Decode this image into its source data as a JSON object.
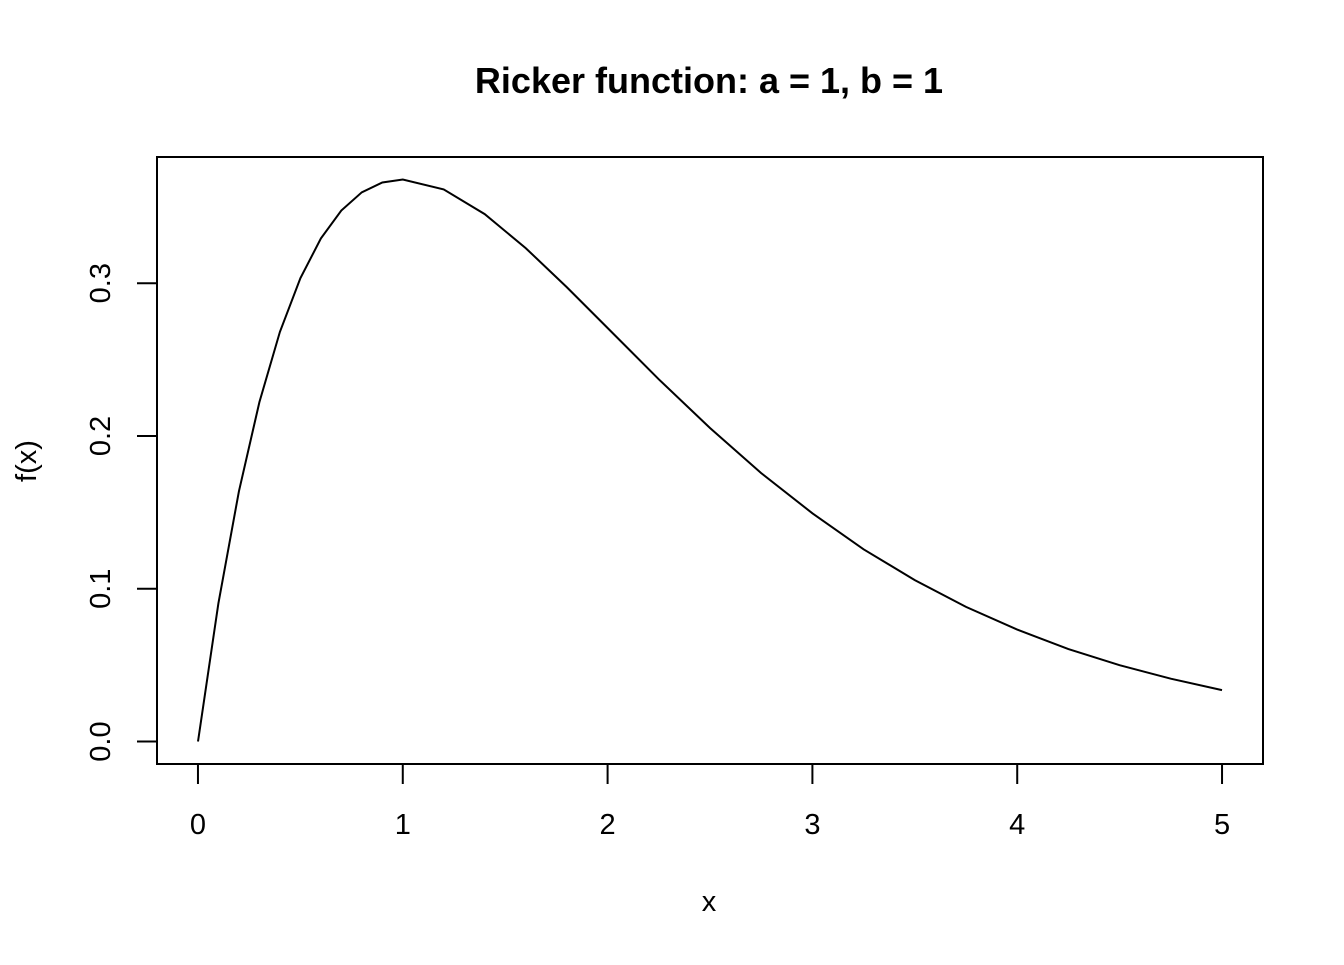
{
  "chart_data": {
    "type": "line",
    "title": "Ricker function: a = 1, b = 1",
    "xlabel": "x",
    "ylabel": "f(x)",
    "xlim": [
      -0.2,
      5.2
    ],
    "ylim": [
      -0.0147,
      0.3826
    ],
    "x_ticks": [
      0,
      1,
      2,
      3,
      4,
      5
    ],
    "x_tick_labels": [
      "0",
      "1",
      "2",
      "3",
      "4",
      "5"
    ],
    "y_ticks": [
      0.0,
      0.1,
      0.2,
      0.3
    ],
    "y_tick_labels": [
      "0.0",
      "0.1",
      "0.2",
      "0.3"
    ],
    "grid": false,
    "line_color": "#000000",
    "series": [
      {
        "x": [
          0,
          0.1,
          0.2,
          0.3,
          0.4,
          0.5,
          0.6,
          0.7,
          0.8,
          0.9,
          1.0,
          1.2,
          1.4,
          1.6,
          1.8,
          2.0,
          2.25,
          2.5,
          2.75,
          3.0,
          3.25,
          3.5,
          3.75,
          4.0,
          4.25,
          4.5,
          4.75,
          5.0
        ],
        "values": [
          0,
          0.0905,
          0.1637,
          0.2222,
          0.2681,
          0.3033,
          0.3293,
          0.3476,
          0.3595,
          0.3659,
          0.3679,
          0.3614,
          0.3452,
          0.323,
          0.2975,
          0.2707,
          0.2371,
          0.2052,
          0.1757,
          0.1494,
          0.1258,
          0.1057,
          0.0881,
          0.0733,
          0.0605,
          0.05,
          0.0411,
          0.0337
        ]
      }
    ]
  }
}
